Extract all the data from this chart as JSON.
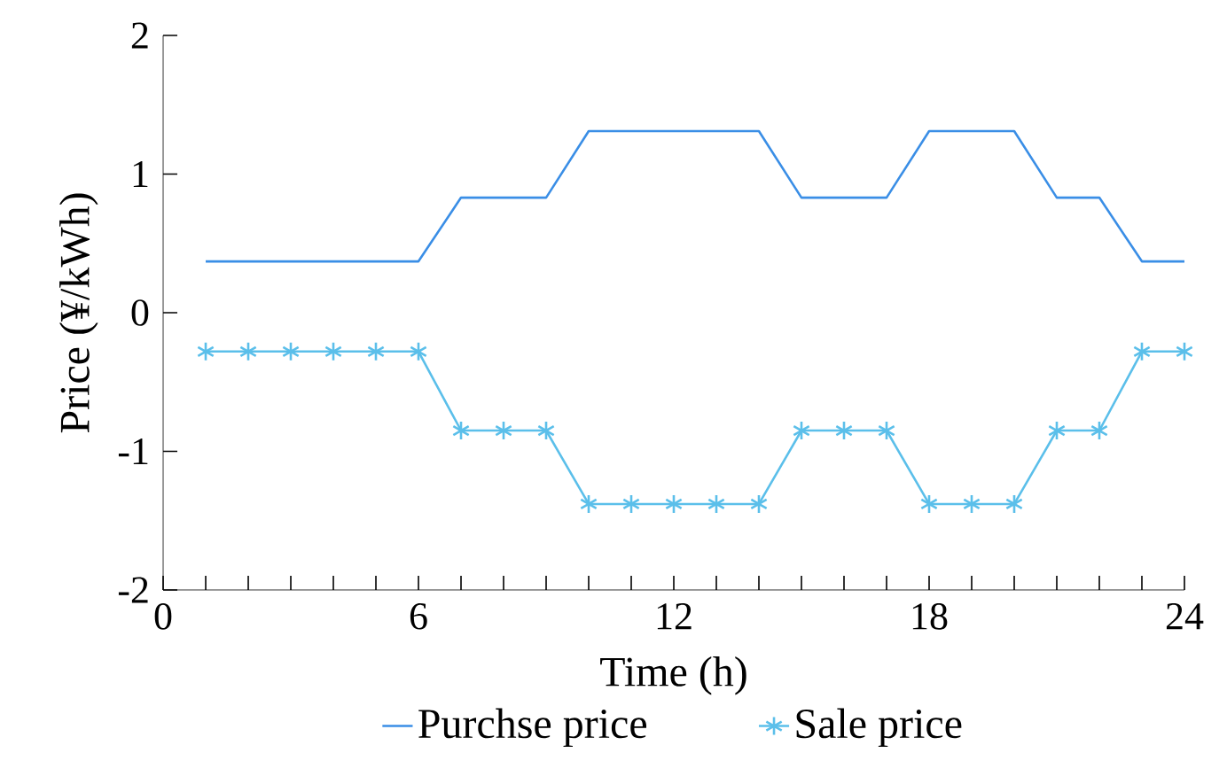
{
  "chart_data": {
    "type": "line",
    "xlabel": "Time (h)",
    "ylabel": "Price (¥/kWh)",
    "x": [
      1,
      2,
      3,
      4,
      5,
      6,
      7,
      8,
      9,
      10,
      11,
      12,
      13,
      14,
      15,
      16,
      17,
      18,
      19,
      20,
      21,
      22,
      23,
      24
    ],
    "series": [
      {
        "name": "Purchse price",
        "color": "#3a8ee6",
        "marker": "none",
        "values": [
          0.37,
          0.37,
          0.37,
          0.37,
          0.37,
          0.37,
          0.83,
          0.83,
          0.83,
          1.31,
          1.31,
          1.31,
          1.31,
          1.31,
          0.83,
          0.83,
          0.83,
          1.31,
          1.31,
          1.31,
          0.83,
          0.83,
          0.37,
          0.37
        ]
      },
      {
        "name": "Sale price",
        "color": "#5bbfea",
        "marker": "cross",
        "values": [
          -0.28,
          -0.28,
          -0.28,
          -0.28,
          -0.28,
          -0.28,
          -0.85,
          -0.85,
          -0.85,
          -1.38,
          -1.38,
          -1.38,
          -1.38,
          -1.38,
          -0.85,
          -0.85,
          -0.85,
          -1.38,
          -1.38,
          -1.38,
          -0.85,
          -0.85,
          -0.28,
          -0.28
        ]
      }
    ],
    "xlim": [
      0,
      24
    ],
    "xticks": [
      0,
      {
        "value": 1,
        "label": null
      },
      {
        "value": 2,
        "label": null
      },
      {
        "value": 3,
        "label": null
      },
      {
        "value": 4,
        "label": null
      },
      {
        "value": 5,
        "label": null
      },
      6,
      {
        "value": 7,
        "label": null
      },
      {
        "value": 8,
        "label": null
      },
      {
        "value": 9,
        "label": null
      },
      {
        "value": 10,
        "label": null
      },
      {
        "value": 11,
        "label": null
      },
      12,
      {
        "value": 13,
        "label": null
      },
      {
        "value": 14,
        "label": null
      },
      {
        "value": 15,
        "label": null
      },
      {
        "value": 16,
        "label": null
      },
      {
        "value": 17,
        "label": null
      },
      18,
      {
        "value": 19,
        "label": null
      },
      {
        "value": 20,
        "label": null
      },
      {
        "value": 21,
        "label": null
      },
      {
        "value": 22,
        "label": null
      },
      {
        "value": 23,
        "label": null
      },
      24
    ],
    "ylim": [
      -2,
      2
    ],
    "yticks": [
      -2,
      -1,
      0,
      1,
      2
    ],
    "grid": false,
    "legend": "bottom",
    "line_style": "solid"
  }
}
